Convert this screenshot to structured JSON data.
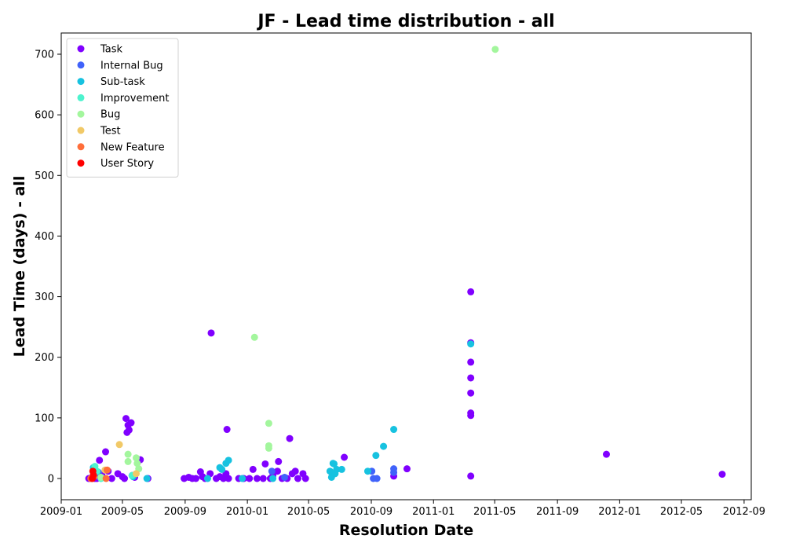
{
  "chart_data": {
    "type": "scatter",
    "title": "JF - Lead time distribution - all",
    "xlabel": "Resolution Date",
    "ylabel": "Lead Time (days) - all",
    "xlim": [
      "2009-01-01",
      "2012-09-15"
    ],
    "ylim": [
      -35,
      735
    ],
    "x_ticks": [
      "2009-01",
      "2009-05",
      "2009-09",
      "2010-01",
      "2010-05",
      "2010-09",
      "2011-01",
      "2011-05",
      "2011-09",
      "2012-01",
      "2012-05",
      "2012-09"
    ],
    "y_ticks": [
      0,
      100,
      200,
      300,
      400,
      500,
      600,
      700
    ],
    "grid": false,
    "legend_position": "top-left",
    "series": [
      {
        "name": "Task",
        "color": "#8000ff",
        "points": [
          [
            "2009-02-24",
            0
          ],
          [
            "2009-03-01",
            0
          ],
          [
            "2009-03-04",
            2
          ],
          [
            "2009-03-08",
            0
          ],
          [
            "2009-03-12",
            0
          ],
          [
            "2009-03-17",
            30
          ],
          [
            "2009-03-22",
            5
          ],
          [
            "2009-03-29",
            44
          ],
          [
            "2009-04-03",
            12
          ],
          [
            "2009-04-10",
            0
          ],
          [
            "2009-04-22",
            8
          ],
          [
            "2009-05-01",
            3
          ],
          [
            "2009-05-05",
            0
          ],
          [
            "2009-05-08",
            99
          ],
          [
            "2009-05-12",
            88
          ],
          [
            "2009-05-10",
            76
          ],
          [
            "2009-05-14",
            80
          ],
          [
            "2009-05-18",
            92
          ],
          [
            "2009-05-20",
            5
          ],
          [
            "2009-05-25",
            2
          ],
          [
            "2009-06-05",
            31
          ],
          [
            "2009-06-20",
            0
          ],
          [
            "2009-08-30",
            0
          ],
          [
            "2009-09-08",
            2
          ],
          [
            "2009-09-15",
            0
          ],
          [
            "2009-09-22",
            0
          ],
          [
            "2009-10-01",
            11
          ],
          [
            "2009-10-05",
            3
          ],
          [
            "2009-10-10",
            0
          ],
          [
            "2009-10-20",
            8
          ],
          [
            "2009-10-22",
            240
          ],
          [
            "2009-11-01",
            0
          ],
          [
            "2009-11-08",
            3
          ],
          [
            "2009-11-15",
            0
          ],
          [
            "2009-11-20",
            8
          ],
          [
            "2009-11-22",
            81
          ],
          [
            "2009-11-25",
            0
          ],
          [
            "2009-12-15",
            0
          ],
          [
            "2009-12-25",
            0
          ],
          [
            "2010-01-05",
            0
          ],
          [
            "2010-01-12",
            15
          ],
          [
            "2010-01-20",
            0
          ],
          [
            "2010-02-01",
            0
          ],
          [
            "2010-02-05",
            24
          ],
          [
            "2010-02-15",
            0
          ],
          [
            "2010-02-20",
            5
          ],
          [
            "2010-03-01",
            12
          ],
          [
            "2010-03-03",
            28
          ],
          [
            "2010-03-10",
            0
          ],
          [
            "2010-03-20",
            0
          ],
          [
            "2010-03-25",
            66
          ],
          [
            "2010-03-30",
            8
          ],
          [
            "2010-04-05",
            12
          ],
          [
            "2010-04-10",
            0
          ],
          [
            "2010-04-20",
            8
          ],
          [
            "2010-04-25",
            0
          ],
          [
            "2010-07-10",
            35
          ],
          [
            "2010-10-15",
            4
          ],
          [
            "2010-11-10",
            16
          ],
          [
            "2011-03-15",
            308
          ],
          [
            "2011-03-15",
            224
          ],
          [
            "2011-03-15",
            192
          ],
          [
            "2011-03-15",
            166
          ],
          [
            "2011-03-15",
            141
          ],
          [
            "2011-03-15",
            108
          ],
          [
            "2011-03-15",
            104
          ],
          [
            "2011-03-15",
            4
          ],
          [
            "2011-12-06",
            40
          ],
          [
            "2012-07-20",
            7
          ]
        ]
      },
      {
        "name": "Internal Bug",
        "color": "#4062fa",
        "points": [
          [
            "2009-03-10",
            5
          ],
          [
            "2009-03-15",
            10
          ],
          [
            "2010-02-18",
            12
          ],
          [
            "2010-03-15",
            2
          ],
          [
            "2010-09-02",
            12
          ],
          [
            "2010-09-05",
            0
          ],
          [
            "2010-09-12",
            0
          ],
          [
            "2010-10-15",
            16
          ],
          [
            "2010-10-15",
            10
          ]
        ]
      },
      {
        "name": "Sub-task",
        "color": "#1996f3",
        "render_color": "#17c2e0",
        "points": [
          [
            "2009-03-05",
            18
          ],
          [
            "2009-05-22",
            3
          ],
          [
            "2009-06-18",
            0
          ],
          [
            "2009-10-15",
            0
          ],
          [
            "2009-11-08",
            18
          ],
          [
            "2009-11-12",
            15
          ],
          [
            "2009-11-20",
            25
          ],
          [
            "2009-11-25",
            30
          ],
          [
            "2009-12-22",
            0
          ],
          [
            "2010-02-20",
            0
          ],
          [
            "2010-06-12",
            12
          ],
          [
            "2010-06-15",
            2
          ],
          [
            "2010-06-18",
            25
          ],
          [
            "2010-06-20",
            24
          ],
          [
            "2010-06-22",
            8
          ],
          [
            "2010-06-25",
            15
          ],
          [
            "2010-07-05",
            15
          ],
          [
            "2010-08-25",
            12
          ],
          [
            "2010-09-10",
            38
          ],
          [
            "2010-09-25",
            53
          ],
          [
            "2010-10-15",
            81
          ],
          [
            "2011-03-15",
            222
          ]
        ]
      },
      {
        "name": "Improvement",
        "color": "#4df3ce",
        "points": [
          [
            "2009-03-08",
            20
          ],
          [
            "2009-03-12",
            12
          ],
          [
            "2009-03-20",
            0
          ],
          [
            "2009-05-20",
            5
          ]
        ]
      },
      {
        "name": "Bug",
        "color": "#a3f69d",
        "points": [
          [
            "2009-03-20",
            2
          ],
          [
            "2009-05-12",
            40
          ],
          [
            "2009-05-12",
            28
          ],
          [
            "2009-05-28",
            34
          ],
          [
            "2009-05-30",
            25
          ],
          [
            "2009-06-02",
            16
          ],
          [
            "2010-01-15",
            233
          ],
          [
            "2010-02-12",
            91
          ],
          [
            "2010-02-12",
            54
          ],
          [
            "2010-02-12",
            50
          ],
          [
            "2011-05-02",
            708
          ]
        ]
      },
      {
        "name": "Test",
        "color": "#f1c967",
        "points": [
          [
            "2009-04-25",
            56
          ],
          [
            "2009-05-28",
            8
          ],
          [
            "2009-03-28",
            14
          ]
        ]
      },
      {
        "name": "New Feature",
        "color": "#ff6e3a",
        "points": [
          [
            "2009-02-28",
            0
          ],
          [
            "2009-03-06",
            3
          ],
          [
            "2009-04-01",
            14
          ],
          [
            "2009-03-30",
            0
          ]
        ]
      },
      {
        "name": "User Story",
        "color": "#ff0000",
        "points": [
          [
            "2009-03-04",
            12
          ],
          [
            "2009-03-05",
            6
          ],
          [
            "2009-03-03",
            0
          ]
        ]
      }
    ]
  }
}
